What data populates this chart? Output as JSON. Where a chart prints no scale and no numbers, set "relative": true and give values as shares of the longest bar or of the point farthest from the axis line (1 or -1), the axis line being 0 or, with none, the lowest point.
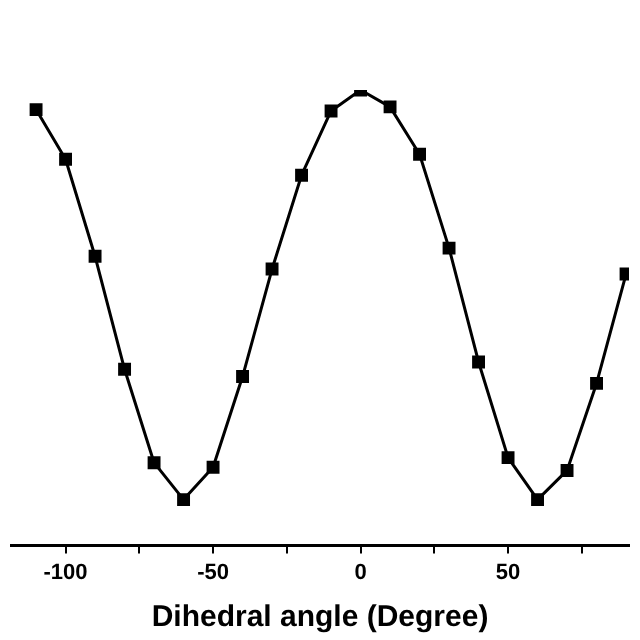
{
  "chart_data": {
    "type": "line",
    "xlabel": "Dihedral angle (Degree)",
    "relative": true,
    "marker": "square",
    "line_style": "solid",
    "grid": false,
    "legend": false,
    "tick_labels": "x",
    "xlim": [
      -118.5,
      91
    ],
    "xticks": [
      -100,
      {
        "value": -75,
        "label": null
      },
      -50,
      {
        "value": -25,
        "label": null
      },
      0,
      {
        "value": 25,
        "label": null
      },
      50,
      {
        "value": 75,
        "label": null
      }
    ],
    "series": [
      {
        "color": "#000000",
        "x": [
          -110,
          -100,
          -90,
          -80,
          -70,
          -60,
          -50,
          -40,
          -30,
          -20,
          -10,
          0,
          10,
          20,
          30,
          40,
          50,
          60,
          70,
          80,
          90
        ],
        "values": [
          0.957,
          0.848,
          0.635,
          0.387,
          0.182,
          0.101,
          0.172,
          0.371,
          0.607,
          0.813,
          0.954,
          1,
          0.963,
          0.859,
          0.653,
          0.403,
          0.193,
          0.101,
          0.165,
          0.356,
          0.596
        ]
      }
    ]
  }
}
